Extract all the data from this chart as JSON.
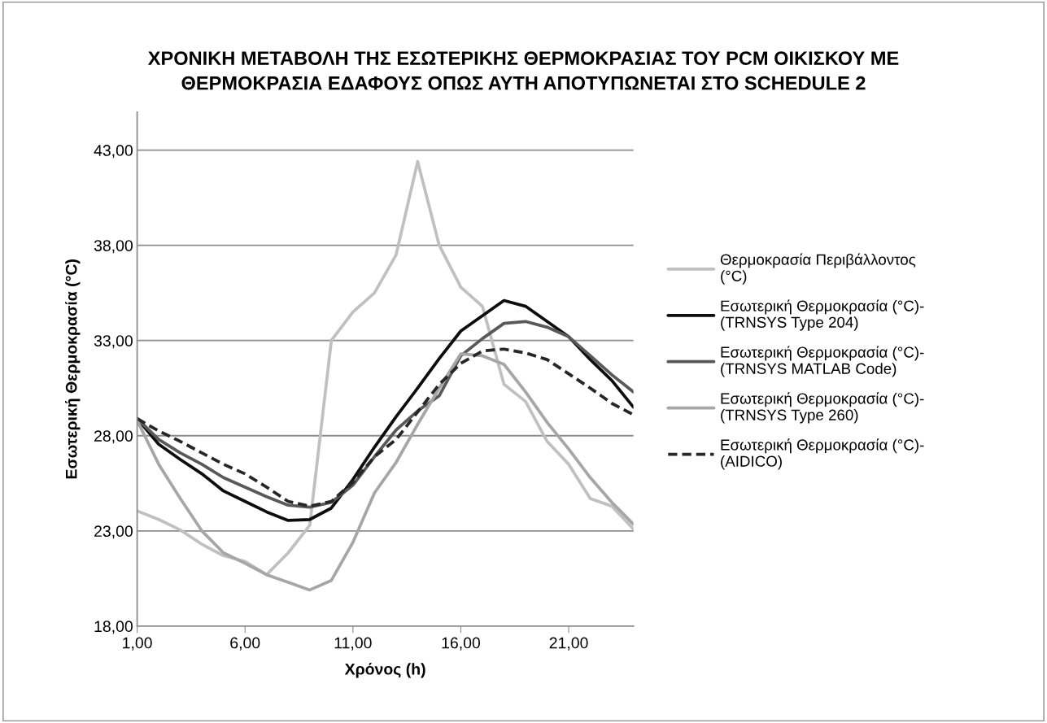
{
  "chart_data": {
    "type": "line",
    "title": "ΧΡΟΝΙΚΗ ΜΕΤΑΒΟΛΗ ΤΗΣ ΕΣΩΤΕΡΙΚΗΣ ΘΕΡΜΟΚΡΑΣΙΑΣ ΤΟΥ PCM ΟΙΚΙΣΚΟΥ ΜΕ ΘΕΡΜΟΚΡΑΣΙΑ ΕΔΑΦΟΥΣ ΟΠΩΣ ΑΥΤΗ ΑΠΟΤΥΠΩΝΕΤΑΙ ΣΤΟ SCHEDULE 2",
    "xlabel": "Χρόνος (h)",
    "ylabel": "Εσωτερική Θερμοκρασία (°C)",
    "x": [
      1,
      2,
      3,
      4,
      5,
      6,
      7,
      8,
      9,
      10,
      11,
      12,
      13,
      14,
      15,
      16,
      17,
      18,
      19,
      20,
      21,
      22,
      23,
      24
    ],
    "series": [
      {
        "name": "Θερμοκρασία Περιβάλλοντος (°C)",
        "color": "#c0c0c0",
        "values": [
          24.05,
          23.6,
          23.05,
          22.3,
          21.7,
          21.4,
          20.7,
          21.85,
          23.3,
          33.0,
          34.5,
          35.5,
          37.5,
          42.4,
          38.0,
          35.8,
          34.8,
          30.7,
          29.8,
          27.7,
          26.5,
          24.7,
          24.3,
          23.1
        ]
      },
      {
        "name": "Εσωτερική Θερμοκρασία (°C)-(TRNSYS Type 204)",
        "color": "#0d0d0d",
        "values": [
          28.9,
          27.55,
          26.75,
          26.0,
          25.1,
          24.55,
          24.0,
          23.55,
          23.6,
          24.2,
          25.7,
          27.4,
          29.0,
          30.5,
          32.05,
          33.5,
          34.3,
          35.1,
          34.8,
          34.0,
          33.2,
          32.0,
          30.9,
          29.5
        ]
      },
      {
        "name": "Εσωτερική Θερμοκρασία (°C)-(TRNSYS MATLAB Code)",
        "color": "#595959",
        "values": [
          28.9,
          27.8,
          27.1,
          26.5,
          25.8,
          25.3,
          24.8,
          24.35,
          24.25,
          24.5,
          25.4,
          26.9,
          28.3,
          29.3,
          30.1,
          32.2,
          33.1,
          33.9,
          34.0,
          33.7,
          33.2,
          32.2,
          31.2,
          30.3
        ]
      },
      {
        "name": "Εσωτερική Θερμοκρασία (°C)-(TRNSYS Type 260)",
        "color": "#a6a6a6",
        "values": [
          28.8,
          26.5,
          24.7,
          23.0,
          21.85,
          21.3,
          20.7,
          20.3,
          19.9,
          20.4,
          22.4,
          25.0,
          26.6,
          28.6,
          30.5,
          32.3,
          32.2,
          31.75,
          30.3,
          28.7,
          27.3,
          25.8,
          24.5,
          23.35
        ]
      },
      {
        "name": "Εσωτερική Θερμοκρασία (°C)-(AIDICO)",
        "color": "#262626",
        "line_style": "dashed",
        "values": [
          28.9,
          28.25,
          27.7,
          27.1,
          26.5,
          26.0,
          25.3,
          24.55,
          24.3,
          24.55,
          25.55,
          26.9,
          27.8,
          29.25,
          30.7,
          31.8,
          32.45,
          32.55,
          32.35,
          32.0,
          31.25,
          30.5,
          29.7,
          29.1
        ]
      }
    ],
    "xlim": [
      1,
      24
    ],
    "xticks": [
      {
        "value": 1,
        "label": "1,00"
      },
      {
        "value": 6,
        "label": "6,00"
      },
      {
        "value": 11,
        "label": "11,00"
      },
      {
        "value": 16,
        "label": "16,00"
      },
      {
        "value": 21,
        "label": "21,00"
      }
    ],
    "ylim": [
      18,
      45
    ],
    "yticks": [
      {
        "value": 18,
        "label": "18,00"
      },
      {
        "value": 23,
        "label": "23,00"
      },
      {
        "value": 28,
        "label": "28,00"
      },
      {
        "value": 33,
        "label": "33,00"
      },
      {
        "value": 38,
        "label": "38,00"
      },
      {
        "value": 43,
        "label": "43,00"
      }
    ],
    "grid": "y",
    "legend": "right",
    "marker": "none",
    "line_style": "solid"
  }
}
